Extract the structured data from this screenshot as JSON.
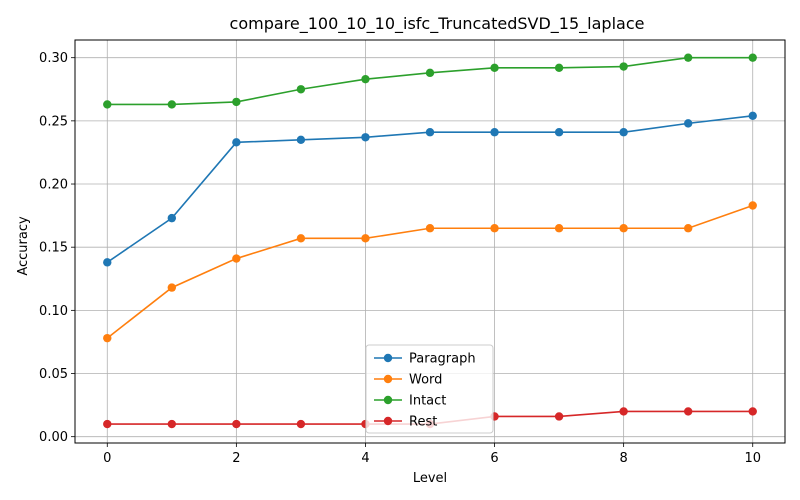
{
  "chart_data": {
    "type": "line",
    "title": "compare_100_10_10_isfc_TruncatedSVD_15_laplace",
    "xlabel": "Level",
    "ylabel": "Accuracy",
    "x": [
      0,
      1,
      2,
      3,
      4,
      5,
      6,
      7,
      8,
      9,
      10
    ],
    "xlim": [
      -0.5,
      10.5
    ],
    "ylim": [
      -0.005,
      0.314
    ],
    "xticks": [
      0,
      2,
      4,
      6,
      8,
      10
    ],
    "xtick_labels": [
      "0",
      "2",
      "4",
      "6",
      "8",
      "10"
    ],
    "yticks": [
      0.0,
      0.05,
      0.1,
      0.15,
      0.2,
      0.25,
      0.3
    ],
    "ytick_labels": [
      "0.00",
      "0.05",
      "0.10",
      "0.15",
      "0.20",
      "0.25",
      "0.30"
    ],
    "grid": true,
    "legend_position": "bottom-center",
    "series": [
      {
        "name": "Paragraph",
        "color": "#1f77b4",
        "values": [
          0.138,
          0.173,
          0.233,
          0.235,
          0.237,
          0.241,
          0.241,
          0.241,
          0.241,
          0.248,
          0.254
        ]
      },
      {
        "name": "Word",
        "color": "#ff7f0e",
        "values": [
          0.078,
          0.118,
          0.141,
          0.157,
          0.157,
          0.165,
          0.165,
          0.165,
          0.165,
          0.165,
          0.183
        ]
      },
      {
        "name": "Intact",
        "color": "#2ca02c",
        "values": [
          0.263,
          0.263,
          0.265,
          0.275,
          0.283,
          0.288,
          0.292,
          0.292,
          0.293,
          0.3,
          0.3
        ]
      },
      {
        "name": "Rest",
        "color": "#d62728",
        "values": [
          0.01,
          0.01,
          0.01,
          0.01,
          0.01,
          0.01,
          0.016,
          0.016,
          0.02,
          0.02,
          0.02
        ]
      }
    ]
  }
}
